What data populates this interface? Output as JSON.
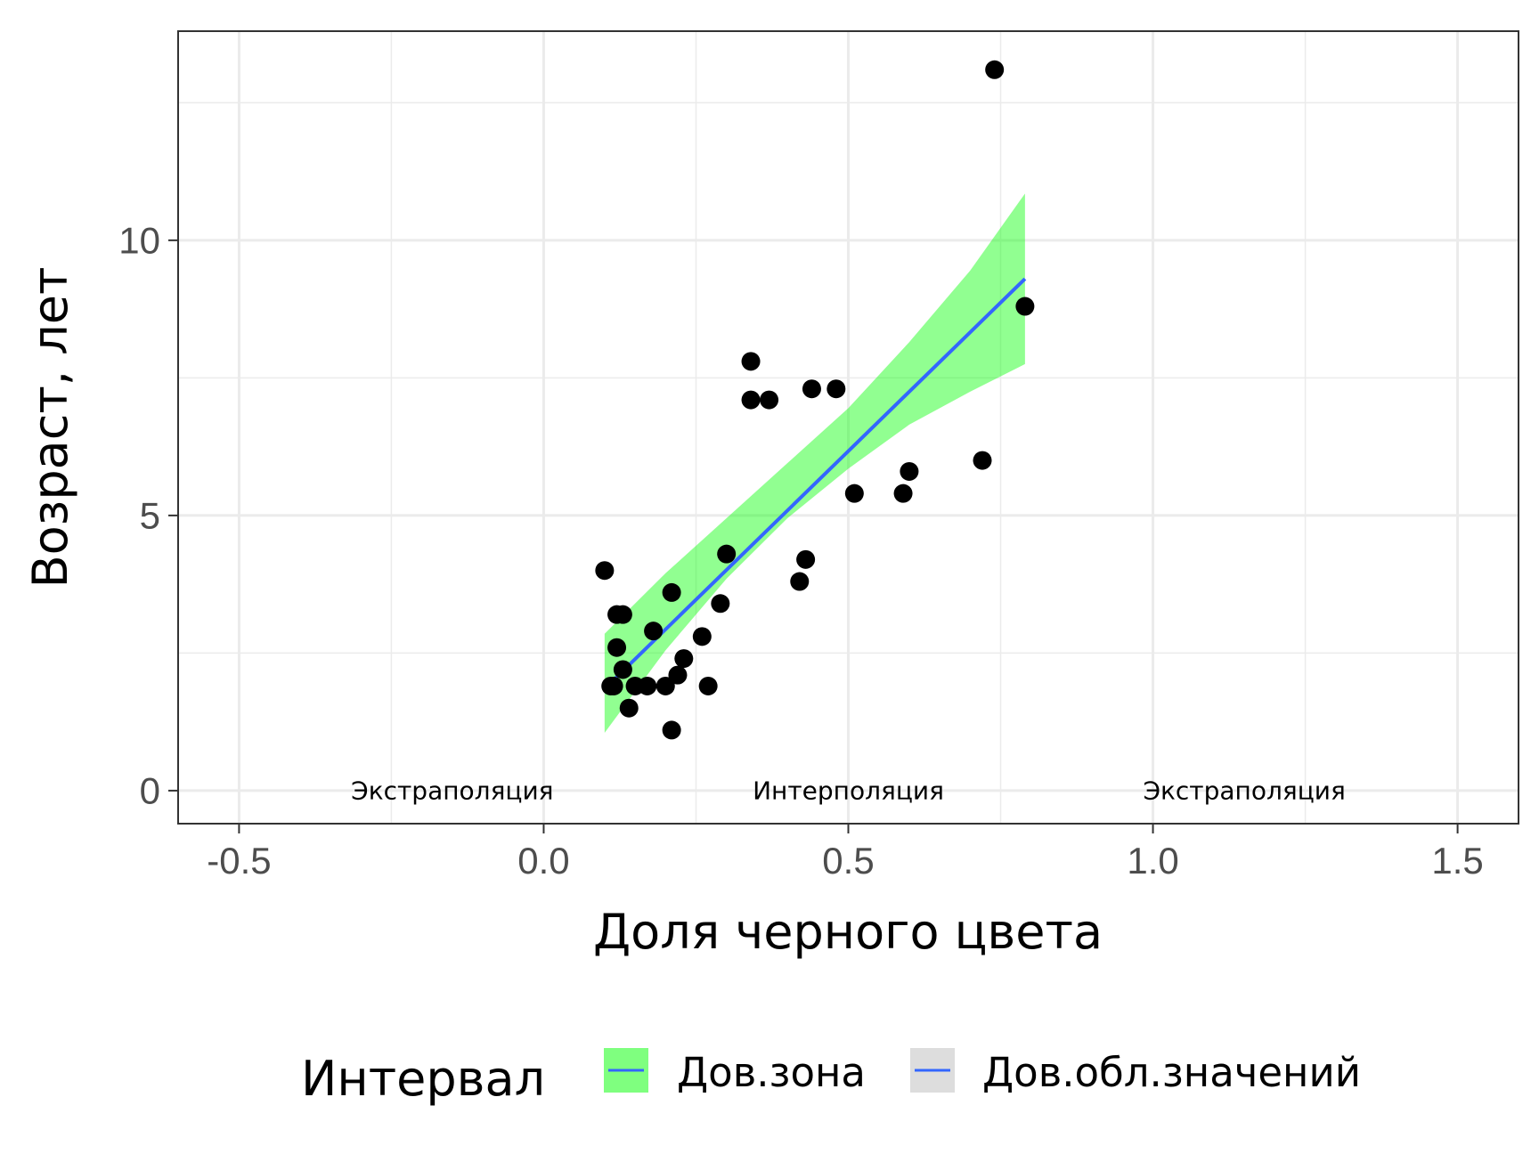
{
  "chart_data": {
    "type": "scatter",
    "xlabel": "Доля черного цвета",
    "ylabel": "Возраст, лет",
    "xlim": [
      -0.6,
      1.6
    ],
    "ylim": [
      -0.6,
      13.8
    ],
    "xticks": [
      -0.5,
      0.0,
      0.5,
      1.0,
      1.5
    ],
    "xtick_labels": [
      "-0.5",
      "0.0",
      "0.5",
      "1.0",
      "1.5"
    ],
    "yticks": [
      0,
      5,
      10
    ],
    "ytick_labels": [
      "0",
      "5",
      "10"
    ],
    "grid": true,
    "points": [
      {
        "x": 0.1,
        "y": 4.0
      },
      {
        "x": 0.11,
        "y": 1.9
      },
      {
        "x": 0.115,
        "y": 1.9
      },
      {
        "x": 0.12,
        "y": 3.2
      },
      {
        "x": 0.12,
        "y": 2.6
      },
      {
        "x": 0.13,
        "y": 3.2
      },
      {
        "x": 0.13,
        "y": 2.2
      },
      {
        "x": 0.14,
        "y": 1.5
      },
      {
        "x": 0.15,
        "y": 1.9
      },
      {
        "x": 0.17,
        "y": 1.9
      },
      {
        "x": 0.18,
        "y": 2.9
      },
      {
        "x": 0.2,
        "y": 1.9
      },
      {
        "x": 0.21,
        "y": 3.6
      },
      {
        "x": 0.21,
        "y": 1.1
      },
      {
        "x": 0.22,
        "y": 2.1
      },
      {
        "x": 0.23,
        "y": 2.4
      },
      {
        "x": 0.26,
        "y": 2.8
      },
      {
        "x": 0.27,
        "y": 1.9
      },
      {
        "x": 0.29,
        "y": 3.4
      },
      {
        "x": 0.3,
        "y": 4.3
      },
      {
        "x": 0.34,
        "y": 7.8
      },
      {
        "x": 0.34,
        "y": 7.1
      },
      {
        "x": 0.37,
        "y": 7.1
      },
      {
        "x": 0.42,
        "y": 3.8
      },
      {
        "x": 0.43,
        "y": 4.2
      },
      {
        "x": 0.44,
        "y": 7.3
      },
      {
        "x": 0.48,
        "y": 7.3
      },
      {
        "x": 0.51,
        "y": 5.4
      },
      {
        "x": 0.59,
        "y": 5.4
      },
      {
        "x": 0.6,
        "y": 5.8
      },
      {
        "x": 0.72,
        "y": 6.0
      },
      {
        "x": 0.74,
        "y": 13.1
      },
      {
        "x": 0.79,
        "y": 8.8
      }
    ],
    "fit_line": {
      "x": [
        0.1,
        0.79
      ],
      "y": [
        1.85,
        9.3
      ],
      "color": "#3366FF"
    },
    "confidence_band": {
      "color": "#00FF00",
      "opacity": 0.43,
      "x": [
        0.1,
        0.2,
        0.3,
        0.4,
        0.5,
        0.6,
        0.7,
        0.79
      ],
      "lower": [
        1.05,
        2.55,
        3.85,
        4.95,
        5.85,
        6.65,
        7.25,
        7.75
      ],
      "upper": [
        2.85,
        3.95,
        4.95,
        5.95,
        6.95,
        8.15,
        9.45,
        10.85
      ]
    },
    "annotations": [
      {
        "text": "Экстраполяция",
        "x": -0.15,
        "y": 0
      },
      {
        "text": "Интерполяция",
        "x": 0.5,
        "y": 0
      },
      {
        "text": "Экстраполяция",
        "x": 1.15,
        "y": 0
      }
    ],
    "legend": {
      "position": "bottom",
      "title": "Интервал",
      "entries": [
        {
          "label": "Дов.зона",
          "fill": "#7FFF7F",
          "line": "#3366FF"
        },
        {
          "label": "Дов.обл.значений",
          "fill": "#DDDDDD",
          "line": "#3366FF"
        }
      ]
    }
  }
}
